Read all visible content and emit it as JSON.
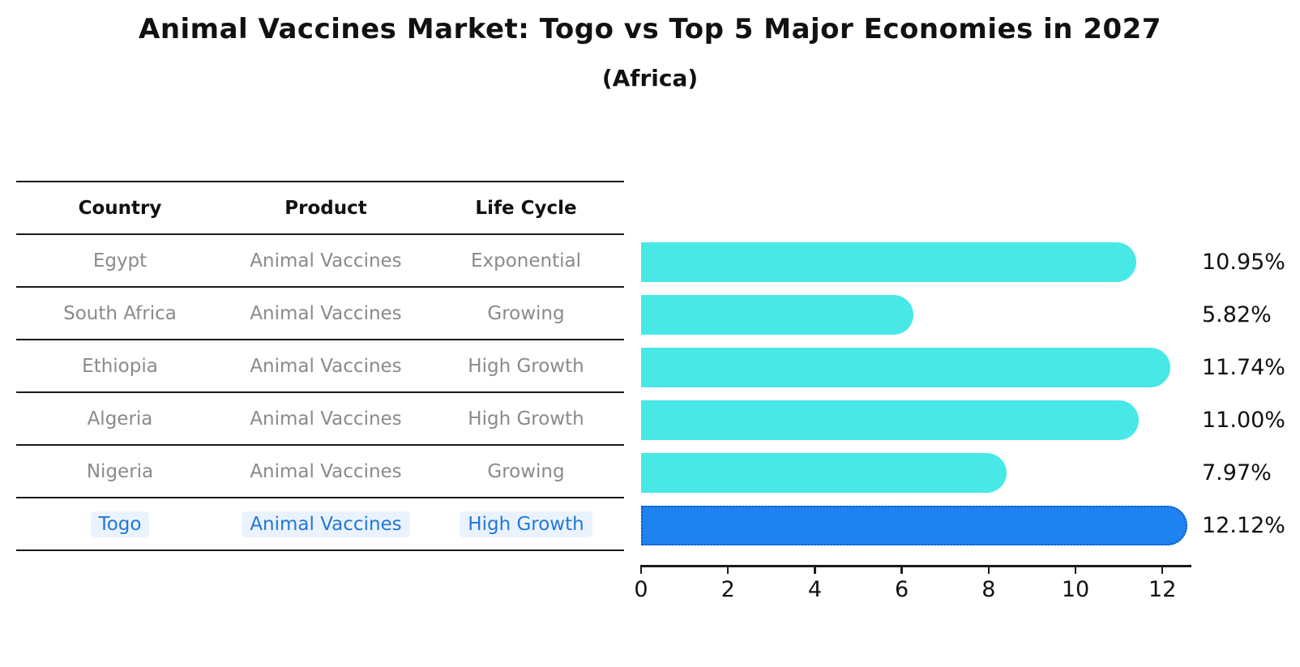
{
  "title": "Animal Vaccines Market: Togo vs Top 5 Major Economies in 2027",
  "subtitle": "(Africa)",
  "table": {
    "columns": [
      "Country",
      "Product",
      "Life Cycle"
    ],
    "rows": [
      {
        "country": "Egypt",
        "product": "Animal Vaccines",
        "life_cycle": "Exponential",
        "highlight": false
      },
      {
        "country": "South Africa",
        "product": "Animal Vaccines",
        "life_cycle": "Growing",
        "highlight": false
      },
      {
        "country": "Ethiopia",
        "product": "Animal Vaccines",
        "life_cycle": "High Growth",
        "highlight": false
      },
      {
        "country": "Algeria",
        "product": "Animal Vaccines",
        "life_cycle": "High Growth",
        "highlight": false
      },
      {
        "country": "Nigeria",
        "product": "Animal Vaccines",
        "life_cycle": "Growing",
        "highlight": false
      },
      {
        "country": "Togo",
        "product": "Animal Vaccines",
        "life_cycle": "High Growth",
        "highlight": true
      }
    ]
  },
  "chart_data": {
    "type": "bar",
    "orientation": "horizontal",
    "title": "Animal Vaccines Market: Togo vs Top 5 Major Economies in 2027",
    "subtitle": "(Africa)",
    "categories": [
      "Egypt",
      "South Africa",
      "Ethiopia",
      "Algeria",
      "Nigeria",
      "Togo"
    ],
    "values": [
      10.95,
      5.82,
      11.74,
      11.0,
      7.97,
      12.12
    ],
    "value_labels": [
      "10.95%",
      "5.82%",
      "11.74%",
      "11.00%",
      "7.97%",
      "12.12%"
    ],
    "xlabel": "",
    "ylabel": "",
    "xlim": [
      0,
      12.63
    ],
    "x_ticks": [
      0,
      2,
      4,
      6,
      8,
      10,
      12
    ],
    "grid": false,
    "legend": "none",
    "highlight_category": "Togo",
    "colors": {
      "bar": "#48e8e6",
      "highlight_bar": "#1e82f0",
      "highlight_border": "#1158c9",
      "highlight_text": "#2277d8",
      "row_text": "#8a8a8a",
      "label_text": "#111111",
      "line": "#1a1a1a"
    }
  }
}
